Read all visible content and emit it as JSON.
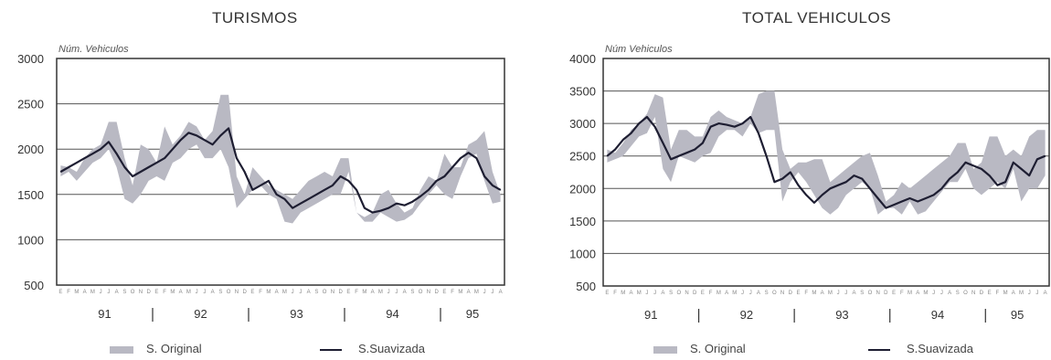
{
  "colors": {
    "original_band": "#b9b9c3",
    "smoothed_line": "#1e1e32",
    "grid": "#555555",
    "frame": "#333333"
  },
  "chart_data": [
    {
      "type": "area",
      "title": "TURISMOS",
      "ylabel": "Núm. Vehiculos",
      "xlabel": "",
      "ylim": [
        500,
        3000
      ],
      "yticks": [
        500,
        1000,
        1500,
        2000,
        2500,
        3000
      ],
      "grid": "horizontal",
      "month_labels": [
        "E",
        "F",
        "M",
        "A",
        "M",
        "J",
        "J",
        "A",
        "S",
        "O",
        "N",
        "D",
        "E",
        "F",
        "M",
        "A",
        "M",
        "J",
        "J",
        "A",
        "S",
        "O",
        "N",
        "D",
        "E",
        "F",
        "M",
        "A",
        "M",
        "J",
        "J",
        "A",
        "S",
        "O",
        "N",
        "D",
        "E",
        "F",
        "M",
        "A",
        "M",
        "J",
        "J",
        "A",
        "S",
        "O",
        "N",
        "D",
        "E",
        "F",
        "M",
        "A",
        "M",
        "J",
        "J",
        "A"
      ],
      "years": [
        "91",
        "92",
        "93",
        "94",
        "95"
      ],
      "legend": {
        "original": "S. Original",
        "smoothed": "S.Suavizada"
      },
      "series": [
        {
          "name": "S. Original",
          "kind": "band",
          "lower": [
            1700,
            1750,
            1650,
            1750,
            1850,
            1900,
            2000,
            1800,
            1450,
            1400,
            1500,
            1650,
            1700,
            1650,
            1850,
            1900,
            2000,
            2050,
            1900,
            1900,
            2000,
            1800,
            1350,
            1450,
            1550,
            1600,
            1500,
            1450,
            1200,
            1180,
            1300,
            1350,
            1400,
            1450,
            1500,
            1500,
            1750,
            1300,
            1200,
            1200,
            1300,
            1250,
            1200,
            1220,
            1280,
            1400,
            1500,
            1600,
            1500,
            1450,
            1700,
            1900,
            1950,
            1650,
            1400,
            1420
          ],
          "upper": [
            1820,
            1800,
            1750,
            1900,
            2000,
            2050,
            2300,
            2300,
            1900,
            1600,
            2050,
            2000,
            1850,
            2250,
            2050,
            2150,
            2300,
            2250,
            2100,
            2200,
            2600,
            2600,
            1700,
            1500,
            1800,
            1700,
            1600,
            1550,
            1500,
            1450,
            1550,
            1650,
            1700,
            1750,
            1700,
            1900,
            1900,
            1300,
            1250,
            1300,
            1500,
            1550,
            1400,
            1300,
            1350,
            1550,
            1700,
            1650,
            1950,
            1800,
            1800,
            2050,
            2100,
            2200,
            1750,
            1500
          ]
        },
        {
          "name": "S.Suavizada",
          "kind": "line",
          "values": [
            1750,
            1800,
            1850,
            1900,
            1950,
            2000,
            2080,
            1950,
            1800,
            1700,
            1750,
            1800,
            1850,
            1900,
            2000,
            2100,
            2180,
            2150,
            2100,
            2050,
            2150,
            2230,
            1900,
            1750,
            1550,
            1600,
            1650,
            1500,
            1450,
            1350,
            1400,
            1450,
            1500,
            1550,
            1600,
            1700,
            1650,
            1550,
            1350,
            1300,
            1320,
            1350,
            1400,
            1380,
            1420,
            1480,
            1550,
            1650,
            1700,
            1800,
            1900,
            1960,
            1900,
            1700,
            1600,
            1550
          ]
        }
      ]
    },
    {
      "type": "area",
      "title": "TOTAL VEHICULOS",
      "ylabel": "Núm Vehiculos",
      "xlabel": "",
      "ylim": [
        500,
        4000
      ],
      "yticks": [
        500,
        1000,
        1500,
        2000,
        2500,
        3000,
        3500,
        4000
      ],
      "grid": "horizontal",
      "month_labels": [
        "E",
        "F",
        "M",
        "A",
        "M",
        "J",
        "J",
        "A",
        "S",
        "O",
        "N",
        "D",
        "E",
        "F",
        "M",
        "A",
        "M",
        "J",
        "J",
        "A",
        "S",
        "O",
        "N",
        "D",
        "E",
        "F",
        "M",
        "A",
        "M",
        "J",
        "J",
        "A",
        "S",
        "O",
        "N",
        "D",
        "E",
        "F",
        "M",
        "A",
        "M",
        "J",
        "J",
        "A",
        "S",
        "O",
        "N",
        "D",
        "E",
        "F",
        "M",
        "A",
        "M",
        "J",
        "J",
        "A"
      ],
      "years": [
        "91",
        "92",
        "93",
        "94",
        "95"
      ],
      "legend": {
        "original": "S. Original",
        "smoothed": "S.Suavizada"
      },
      "series": [
        {
          "name": "S. Original",
          "kind": "band",
          "lower": [
            2400,
            2450,
            2500,
            2650,
            2800,
            2850,
            3100,
            2300,
            2100,
            2500,
            2450,
            2400,
            2500,
            2550,
            2800,
            2900,
            2900,
            2800,
            3000,
            2850,
            2900,
            2900,
            1800,
            2100,
            2250,
            2100,
            1900,
            1700,
            1600,
            1700,
            1900,
            2000,
            2100,
            2000,
            1600,
            1700,
            1700,
            1600,
            1800,
            1600,
            1650,
            1800,
            1950,
            2100,
            2100,
            2300,
            2000,
            1900,
            2000,
            2100,
            2000,
            2300,
            1800,
            2000,
            2000,
            2200
          ],
          "upper": [
            2600,
            2550,
            2700,
            2900,
            3000,
            3150,
            3450,
            3400,
            2600,
            2900,
            2900,
            2800,
            2800,
            3100,
            3200,
            3100,
            3050,
            3000,
            3100,
            3450,
            3500,
            3500,
            2600,
            2300,
            2400,
            2400,
            2450,
            2450,
            2100,
            2200,
            2300,
            2400,
            2500,
            2550,
            2200,
            1800,
            1900,
            2100,
            2000,
            2100,
            2200,
            2300,
            2400,
            2500,
            2700,
            2700,
            2300,
            2400,
            2800,
            2800,
            2500,
            2600,
            2500,
            2800,
            2900,
            2900
          ]
        },
        {
          "name": "S.Suavizada",
          "kind": "line",
          "values": [
            2500,
            2600,
            2750,
            2850,
            3000,
            3100,
            2950,
            2700,
            2450,
            2500,
            2550,
            2600,
            2700,
            2950,
            3000,
            2980,
            2950,
            3000,
            3100,
            2850,
            2500,
            2100,
            2150,
            2250,
            2050,
            1900,
            1780,
            1900,
            2000,
            2050,
            2100,
            2200,
            2150,
            2000,
            1850,
            1700,
            1750,
            1800,
            1850,
            1800,
            1850,
            1900,
            2000,
            2150,
            2250,
            2400,
            2350,
            2300,
            2200,
            2050,
            2100,
            2400,
            2300,
            2200,
            2450,
            2500
          ]
        }
      ]
    }
  ]
}
